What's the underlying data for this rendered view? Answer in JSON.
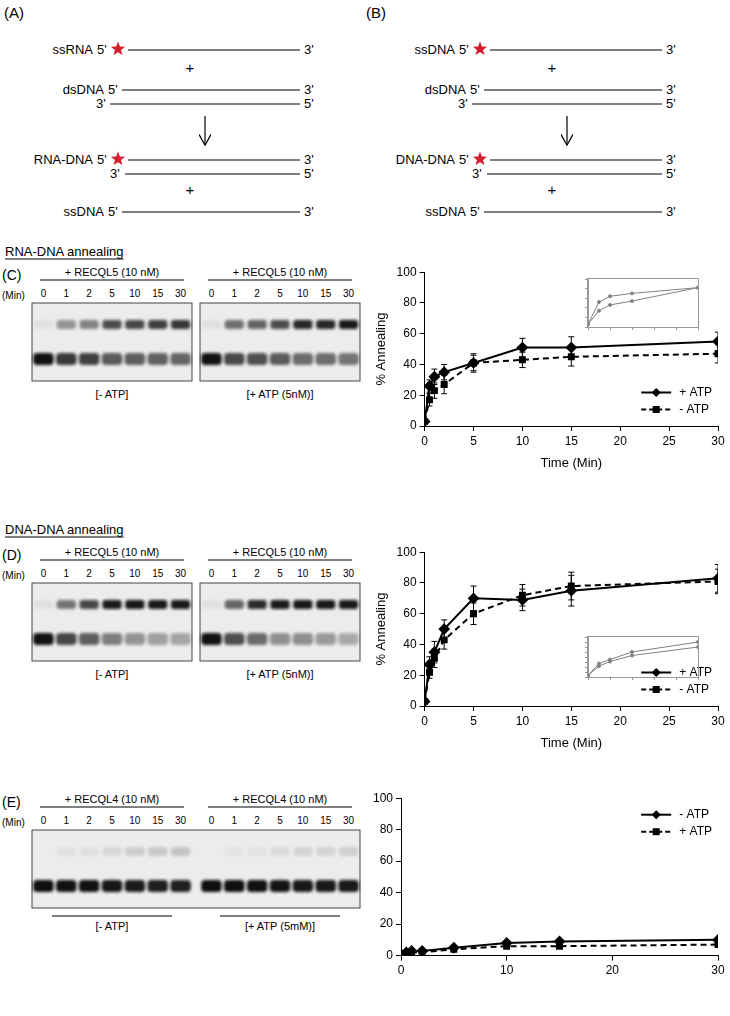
{
  "diagrams": [
    {
      "label": "(A)",
      "plus": "+",
      "single": {
        "name": "ssRNA",
        "ends": [
          "5'",
          "3'"
        ]
      },
      "duplex": {
        "name": "dsDNA",
        "top": [
          "5'",
          "3'"
        ],
        "bottom": [
          "3'",
          "5'"
        ]
      },
      "product": {
        "name": "RNA-DNA",
        "top": [
          "5'",
          "3'"
        ],
        "bottom": [
          "3'",
          "5'"
        ]
      },
      "released": {
        "name": "ssDNA",
        "ends": [
          "5'",
          "3'"
        ]
      }
    },
    {
      "label": "(B)",
      "plus": "+",
      "single": {
        "name": "ssDNA",
        "ends": [
          "5'",
          "3'"
        ]
      },
      "duplex": {
        "name": "dsDNA",
        "top": [
          "5'",
          "3'"
        ],
        "bottom": [
          "3'",
          "5'"
        ]
      },
      "product": {
        "name": "DNA-DNA",
        "top": [
          "5'",
          "3'"
        ],
        "bottom": [
          "3'",
          "5'"
        ]
      },
      "released": {
        "name": "ssDNA",
        "ends": [
          "5'",
          "3'"
        ]
      }
    }
  ],
  "sections": [
    "RNA-DNA annealing",
    "DNA-DNA annealing"
  ],
  "gels": [
    {
      "label": "(C)",
      "protein": "+ RECQL5 (10 nM)",
      "time_label": "(Min)",
      "lanes": [
        0,
        1,
        2,
        5,
        10,
        15,
        30
      ],
      "conditions": [
        "[- ATP]",
        "[+ ATP (5nM)]"
      ]
    },
    {
      "label": "(D)",
      "protein": "+ RECQL5 (10 nM)",
      "time_label": "(Min)",
      "lanes": [
        0,
        1,
        2,
        5,
        10,
        15,
        30
      ],
      "conditions": [
        "[- ATP]",
        "[+ ATP (5nM)]"
      ]
    },
    {
      "label": "(E)",
      "protein": "+ RECQL4 (10 nM)",
      "time_label": "(Min)",
      "lanes": [
        0,
        1,
        2,
        5,
        10,
        15,
        30
      ],
      "conditions": [
        "[- ATP]",
        "[+ ATP (5mM)]"
      ]
    }
  ],
  "chart_data": [
    {
      "type": "line",
      "x_label": "Time (Min)",
      "y_label": "% Annealing",
      "grid": false,
      "legend": "lower right",
      "xlim": [
        0,
        30
      ],
      "xticks": [
        0,
        5,
        10,
        15,
        20,
        25,
        30
      ],
      "ylim": [
        0,
        100
      ],
      "yticks": [
        0,
        20,
        40,
        60,
        80,
        100
      ],
      "x": [
        0,
        0.5,
        1,
        2,
        5,
        10,
        15,
        30
      ],
      "series": [
        {
          "name": "+ ATP",
          "color": "#000000",
          "marker": "diamond",
          "line_style": "solid",
          "values": [
            3,
            26,
            32,
            35,
            41,
            51,
            51,
            55
          ],
          "errors": [
            1,
            4,
            5,
            5,
            6,
            6,
            7,
            6
          ]
        },
        {
          "name": "- ATP",
          "color": "#000000",
          "marker": "square",
          "line_style": "dashed",
          "values": [
            3,
            17,
            23,
            27,
            41,
            43,
            45,
            47
          ],
          "errors": [
            1,
            4,
            5,
            6,
            5,
            5,
            6,
            6
          ]
        }
      ]
    },
    {
      "type": "line",
      "x_label": "Time (Min)",
      "y_label": "% Annealing",
      "grid": false,
      "legend": "lower right",
      "xlim": [
        0,
        30
      ],
      "xticks": [
        0,
        5,
        10,
        15,
        20,
        25,
        30
      ],
      "ylim": [
        0,
        100
      ],
      "yticks": [
        0,
        20,
        40,
        60,
        80,
        100
      ],
      "x": [
        0,
        0.5,
        1,
        2,
        5,
        10,
        15,
        30
      ],
      "series": [
        {
          "name": "+ ATP",
          "color": "#000000",
          "marker": "diamond",
          "line_style": "solid",
          "values": [
            3,
            27,
            35,
            50,
            70,
            69,
            75,
            83
          ],
          "errors": [
            1,
            5,
            7,
            6,
            8,
            7,
            10,
            9
          ]
        },
        {
          "name": "- ATP",
          "color": "#000000",
          "marker": "square",
          "line_style": "dashed",
          "values": [
            3,
            22,
            31,
            43,
            60,
            72,
            78,
            81
          ],
          "errors": [
            1,
            4,
            6,
            6,
            7,
            7,
            9,
            8
          ]
        }
      ]
    },
    {
      "type": "line",
      "grid": false,
      "legend": "upper right",
      "xlim": [
        0,
        30
      ],
      "xticks": [
        0,
        10,
        20,
        30
      ],
      "ylim": [
        0,
        100
      ],
      "yticks": [
        0,
        20,
        40,
        60,
        80,
        100
      ],
      "x": [
        0,
        0.5,
        1,
        2,
        5,
        10,
        15,
        30
      ],
      "series": [
        {
          "name": "- ATP",
          "color": "#000000",
          "marker": "diamond",
          "line_style": "solid",
          "values": [
            1,
            2,
            3,
            3,
            5,
            8,
            9,
            10
          ],
          "errors": [
            1,
            1,
            1,
            1,
            1,
            1,
            1,
            1
          ]
        },
        {
          "name": "+ ATP",
          "color": "#000000",
          "marker": "square",
          "line_style": "dashed",
          "values": [
            1,
            1,
            2,
            2,
            4,
            6,
            6,
            7
          ],
          "errors": [
            1,
            1,
            1,
            1,
            1,
            1,
            1,
            1
          ]
        }
      ]
    },
    {
      "type": "line",
      "grid": false,
      "tick_labels": false,
      "xlim": [
        0,
        5
      ],
      "xticks": [
        0,
        1,
        2,
        3,
        4,
        5
      ],
      "ylim": [
        0,
        50
      ],
      "yticks": [
        0,
        10,
        20,
        30,
        40,
        50
      ],
      "x": [
        0,
        0.5,
        1,
        2,
        5
      ],
      "series": [
        {
          "color": "#808080",
          "marker": "circle",
          "line_style": "solid",
          "values": [
            3,
            26,
            32,
            35,
            41
          ]
        },
        {
          "color": "#808080",
          "marker": "circle",
          "line_style": "solid",
          "values": [
            3,
            17,
            23,
            27,
            41
          ]
        }
      ]
    },
    {
      "type": "line",
      "grid": false,
      "tick_labels": false,
      "xlim": [
        0,
        5
      ],
      "xticks": [
        0,
        1,
        2,
        3,
        4,
        5
      ],
      "ylim": [
        0,
        80
      ],
      "yticks": [
        0,
        10,
        20,
        30,
        40,
        50,
        60,
        70,
        80
      ],
      "x": [
        0,
        0.5,
        1,
        2,
        5
      ],
      "series": [
        {
          "color": "#808080",
          "marker": "circle",
          "line_style": "solid",
          "values": [
            3,
            27,
            35,
            50,
            70
          ]
        },
        {
          "color": "#808080",
          "marker": "circle",
          "line_style": "solid",
          "values": [
            3,
            22,
            31,
            43,
            60
          ]
        }
      ]
    }
  ]
}
